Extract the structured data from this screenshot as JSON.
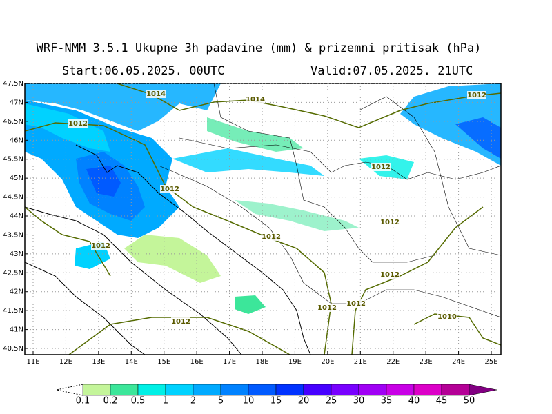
{
  "title": "WRF-NMM 3.5.1  Ukupne 3h padavine (mm) & prizemni pritisak (hPa)",
  "start": "Start:06.05.2025.  00UTC",
  "valid": "Valid:07.05.2025.  21UTC",
  "map": {
    "lat_ticks": [
      {
        "value": 47.5,
        "label": "47.5N"
      },
      {
        "value": 47,
        "label": "47N"
      },
      {
        "value": 46.5,
        "label": "46.5N"
      },
      {
        "value": 46,
        "label": "46N"
      },
      {
        "value": 45.5,
        "label": "45.5N"
      },
      {
        "value": 45,
        "label": "45N"
      },
      {
        "value": 44.5,
        "label": "44.5N"
      },
      {
        "value": 44,
        "label": "44N"
      },
      {
        "value": 43.5,
        "label": "43.5N"
      },
      {
        "value": 43,
        "label": "43N"
      },
      {
        "value": 42.5,
        "label": "42.5N"
      },
      {
        "value": 42,
        "label": "42N"
      },
      {
        "value": 41.5,
        "label": "41.5N"
      },
      {
        "value": 41,
        "label": "41N"
      },
      {
        "value": 40.5,
        "label": "40.5N"
      }
    ],
    "lon_ticks": [
      {
        "value": 11,
        "label": "11E"
      },
      {
        "value": 12,
        "label": "12E"
      },
      {
        "value": 13,
        "label": "13E"
      },
      {
        "value": 14,
        "label": "14E"
      },
      {
        "value": 15,
        "label": "15E"
      },
      {
        "value": 16,
        "label": "16E"
      },
      {
        "value": 17,
        "label": "17E"
      },
      {
        "value": 18,
        "label": "18E"
      },
      {
        "value": 19,
        "label": "19E"
      },
      {
        "value": 20,
        "label": "20E"
      },
      {
        "value": 21,
        "label": "21E"
      },
      {
        "value": 22,
        "label": "22E"
      },
      {
        "value": 23,
        "label": "23E"
      },
      {
        "value": 24,
        "label": "24E"
      },
      {
        "value": 25,
        "label": "25E"
      }
    ],
    "isobar_labels": [
      "1014",
      "1014",
      "1012",
      "1012",
      "1012",
      "1012",
      "1012",
      "1012",
      "1012",
      "1012",
      "1012",
      "1012",
      "1012",
      "1010"
    ]
  },
  "legend": {
    "levels": [
      0.1,
      0.2,
      0.5,
      1,
      2,
      5,
      10,
      15,
      20,
      25,
      30,
      35,
      40,
      45,
      50
    ],
    "colors": [
      "#c4f59a",
      "#3ce69a",
      "#00f0e6",
      "#00d2ff",
      "#00aaff",
      "#0082ff",
      "#005aff",
      "#0032ff",
      "#4600ff",
      "#7800ff",
      "#a000f5",
      "#c800e6",
      "#dc00c8",
      "#b40096"
    ],
    "over_color": "#820082"
  }
}
